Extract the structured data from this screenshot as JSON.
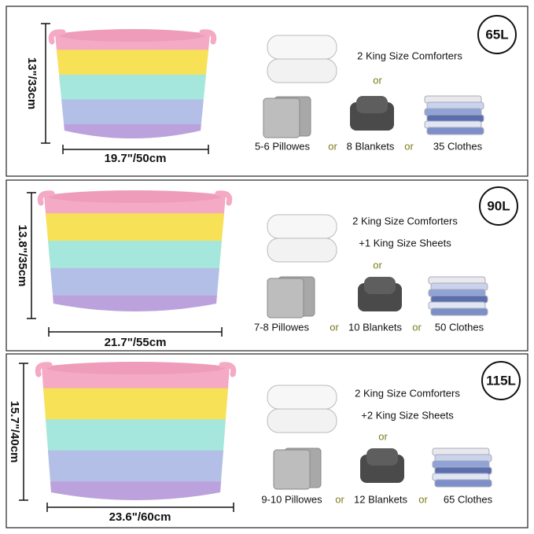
{
  "panels": [
    {
      "capacity": "65L",
      "height": "13\"/33cm",
      "width": "19.7\"/50cm",
      "lines": [
        "2 King Size Comforters"
      ],
      "or": "or",
      "items": [
        "5-6 Pillowes",
        "8 Blankets",
        "35 Clothes"
      ],
      "separators": [
        "or",
        "or"
      ]
    },
    {
      "capacity": "90L",
      "height": "13.8\"/35cm",
      "width": "21.7\"/55cm",
      "lines": [
        "2 King Size Comforters",
        "+1 King Size Sheets"
      ],
      "or": "or",
      "items": [
        "7-8 Pillowes",
        "10 Blankets",
        "50 Clothes"
      ],
      "separators": [
        "or",
        "or"
      ]
    },
    {
      "capacity": "115L",
      "height": "15.7\"/40cm",
      "width": "23.6\"/60cm",
      "lines": [
        "2 King Size Comforters",
        "+2 King Size Sheets"
      ],
      "or": "or",
      "items": [
        "9-10 Pillowes",
        "12 Blankets",
        "65 Clothes"
      ],
      "separators": [
        "or",
        "or"
      ]
    }
  ]
}
